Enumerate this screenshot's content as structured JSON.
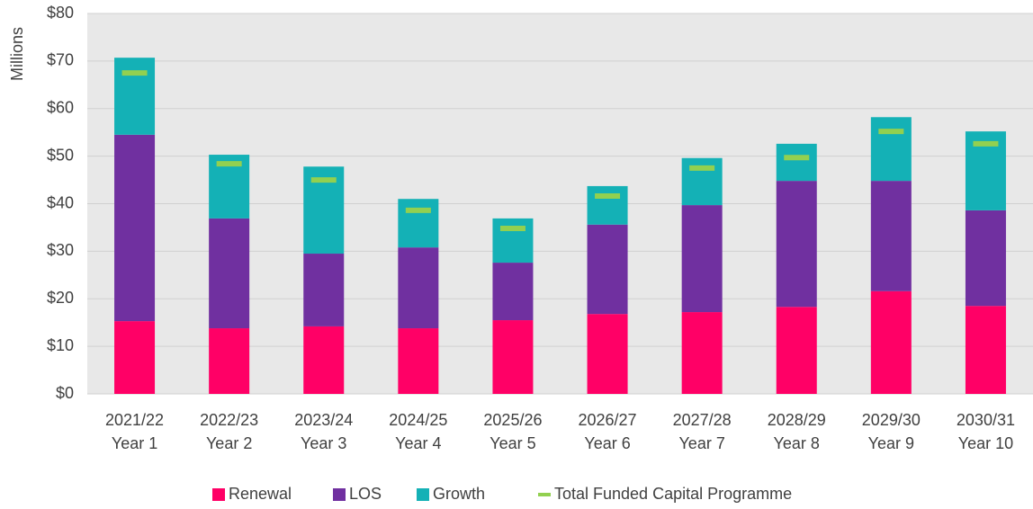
{
  "chart_data": {
    "type": "stacked_bar",
    "y_label": "Millions",
    "categories": [
      [
        "2021/22",
        "Year 1"
      ],
      [
        "2022/23",
        "Year 2"
      ],
      [
        "2023/24",
        "Year 3"
      ],
      [
        "2024/25",
        "Year 4"
      ],
      [
        "2025/26",
        "Year 5"
      ],
      [
        "2026/27",
        "Year 6"
      ],
      [
        "2027/28",
        "Year 7"
      ],
      [
        "2028/29",
        "Year 8"
      ],
      [
        "2029/30",
        "Year 9"
      ],
      [
        "2030/31",
        "Year 10"
      ]
    ],
    "series": [
      {
        "name": "Renewal",
        "color": "#ff0066",
        "values": [
          15.3,
          13.8,
          14.2,
          13.8,
          15.5,
          16.8,
          17.2,
          18.3,
          21.6,
          18.5
        ]
      },
      {
        "name": "LOS",
        "color": "#7030a0",
        "values": [
          39.2,
          23.1,
          15.3,
          17.0,
          12.1,
          18.8,
          22.5,
          26.5,
          23.2,
          20.1
        ]
      },
      {
        "name": "Growth",
        "color": "#14b1b6",
        "values": [
          16.2,
          13.4,
          18.3,
          10.2,
          9.3,
          8.1,
          9.9,
          7.8,
          13.4,
          16.6
        ]
      }
    ],
    "markers": {
      "name": "Total Funded Capital Programme",
      "color": "#92d050",
      "values": [
        67.5,
        48.4,
        45.0,
        38.6,
        34.8,
        41.6,
        47.5,
        49.7,
        55.2,
        52.6
      ]
    },
    "ylim": [
      0,
      80
    ],
    "yticks": [
      {
        "value": 0,
        "label": "$0"
      },
      {
        "value": 10,
        "label": "$10"
      },
      {
        "value": 20,
        "label": "$20"
      },
      {
        "value": 30,
        "label": "$30"
      },
      {
        "value": 40,
        "label": "$40"
      },
      {
        "value": 50,
        "label": "$50"
      },
      {
        "value": 60,
        "label": "$60"
      },
      {
        "value": 70,
        "label": "$70"
      },
      {
        "value": 80,
        "label": "$80"
      }
    ],
    "grid": true
  }
}
